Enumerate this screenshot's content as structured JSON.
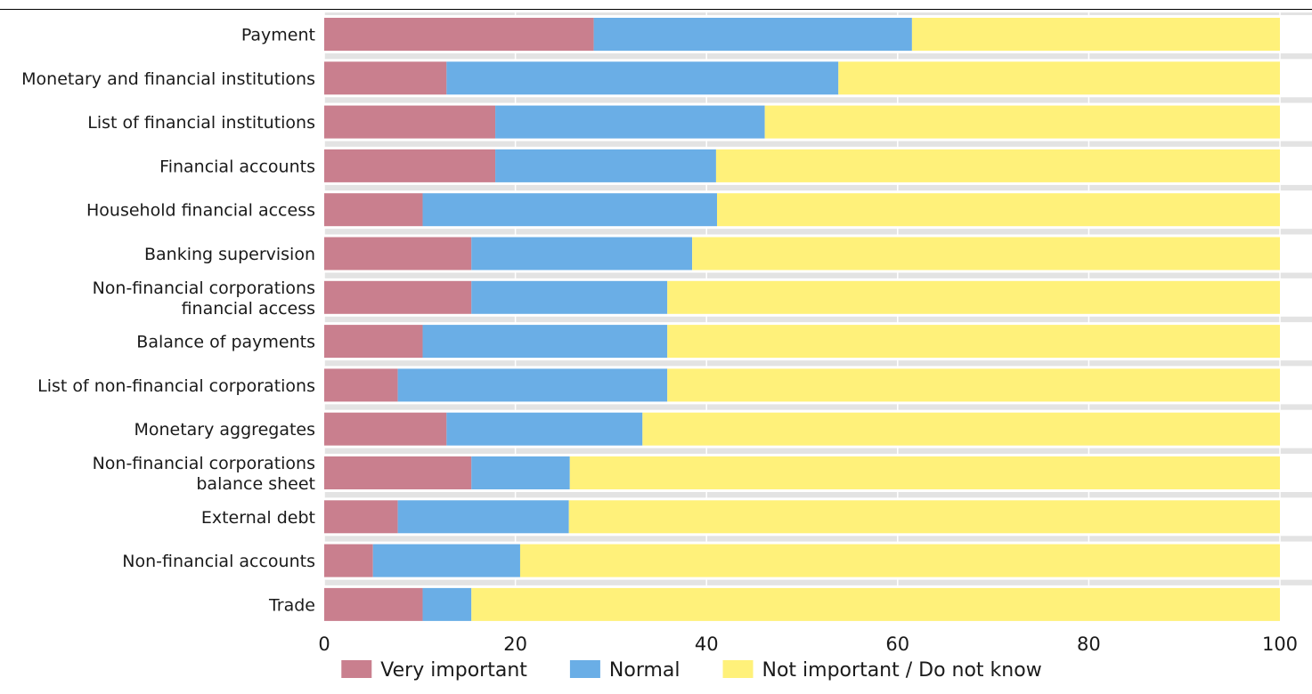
{
  "colors": {
    "very_important": "#c97f8e",
    "normal": "#6aaee6",
    "not_important": "#fff17a",
    "plot_background": "#e3e3e3",
    "band": "#ffffff"
  },
  "chart_data": {
    "type": "bar",
    "orientation": "horizontal",
    "stacked": true,
    "title": "",
    "xlabel": "",
    "ylabel": "",
    "xlim": [
      0,
      100
    ],
    "x_ticks": [
      0,
      20,
      40,
      60,
      80,
      100
    ],
    "legend_position": "bottom",
    "categories": [
      [
        "Payment"
      ],
      [
        "Monetary and financial institutions"
      ],
      [
        "List of financial institutions"
      ],
      [
        "Financial accounts"
      ],
      [
        "Household financial access"
      ],
      [
        "Banking supervision"
      ],
      [
        "Non-financial corporations",
        "financial access"
      ],
      [
        "Balance of payments"
      ],
      [
        "List of non-financial corporations"
      ],
      [
        "Monetary aggregates"
      ],
      [
        "Non-financial corporations",
        "balance sheet"
      ],
      [
        "External debt"
      ],
      [
        "Non-financial accounts"
      ],
      [
        "Trade"
      ]
    ],
    "series": [
      {
        "name": "Very important",
        "values": [
          28.2,
          12.8,
          17.9,
          17.9,
          10.3,
          15.4,
          15.4,
          10.3,
          7.7,
          12.8,
          15.4,
          7.7,
          5.1,
          10.3
        ]
      },
      {
        "name": "Normal",
        "values": [
          33.3,
          41.0,
          28.2,
          23.1,
          30.8,
          23.1,
          20.5,
          25.6,
          28.2,
          20.5,
          10.3,
          17.9,
          15.4,
          5.1
        ]
      },
      {
        "name": "Not important / Do not know",
        "values": [
          38.5,
          46.2,
          53.9,
          59.0,
          58.9,
          61.5,
          64.1,
          64.1,
          64.1,
          66.7,
          74.3,
          74.4,
          79.5,
          84.6
        ]
      }
    ]
  }
}
